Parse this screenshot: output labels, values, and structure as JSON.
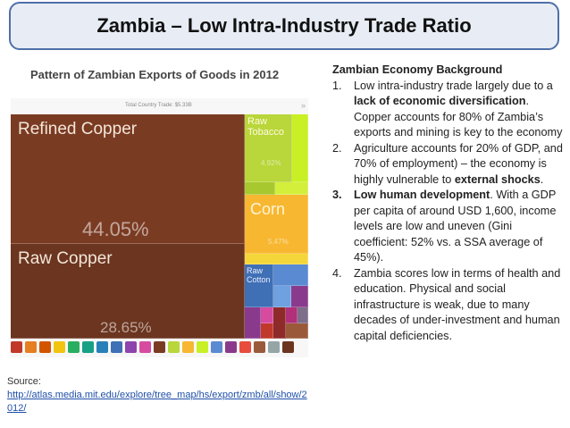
{
  "title": "Zambia – Low Intra-Industry Trade Ratio",
  "left": {
    "subtitle": "Pattern of Zambian Exports of Goods in 2012",
    "treemap": {
      "total_label": "Total Country Trade: $5.33B",
      "blocks": [
        {
          "label": "Refined Copper",
          "percent": "44.05%",
          "color": "#7a3b23"
        },
        {
          "label": "Raw Copper",
          "percent": "28.65%",
          "color": "#6b3520"
        },
        {
          "label": "Raw Tobacco",
          "percent": "4.92%",
          "color": "#b9d63a"
        },
        {
          "label": "Corn",
          "percent": "5.47%",
          "color": "#f7b731"
        },
        {
          "label": "Raw Cotton",
          "percent": "",
          "color": "#3f6fb5"
        }
      ],
      "colors": {
        "mineral": "#7a3b23",
        "vegetable": "#b9d63a",
        "lime": "#c8f024",
        "corn": "#f7b731",
        "blue": "#3f6fb5",
        "purple": "#8a3a8c",
        "red": "#c0392b",
        "pink": "#d64ba0"
      }
    },
    "source_label": "Source:",
    "source_url": "http://atlas.media.mit.edu/explore/tree_map/hs/export/zmb/all/show/2012/"
  },
  "right": {
    "heading": "Zambian Economy Background",
    "items": [
      {
        "num": "1.",
        "pre": "Low intra-industry trade largely due to a ",
        "bold": "lack of economic diversification",
        "post": ". Copper accounts for 80% of Zambia’s exports and mining is key to the economy"
      },
      {
        "num": "2.",
        "pre": "Agriculture accounts for 20% of GDP, and 70% of employment) – the economy is highly vulnerable to ",
        "bold": "external shocks",
        "post": "."
      },
      {
        "num": "3.",
        "pre": "",
        "bold": "Low human development",
        "post": ". With a GDP per capita of around USD 1,600, income levels are low and uneven (Gini coefficient: 52% vs. a SSA average of 45%)."
      },
      {
        "num": "4.",
        "pre": "Zambia scores low in terms of health and education. Physical and social infrastructure is weak, due to many decades of under-investment and human capital deficiencies.",
        "bold": "",
        "post": ""
      }
    ]
  }
}
